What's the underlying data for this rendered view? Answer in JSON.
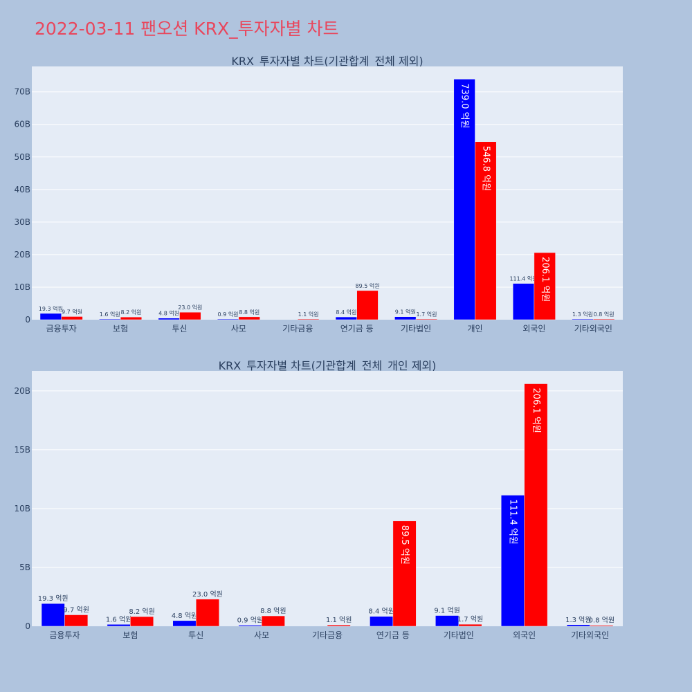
{
  "page": {
    "title": "2022-03-11 팬오션 KRX_투자자별 차트"
  },
  "colors": {
    "buy": "#0000ff",
    "sell": "#ff0000",
    "plot_bg": "#e5ecf6",
    "page_bg": "#b0c4de",
    "title": "#e8475d"
  },
  "chart_data": [
    {
      "type": "bar",
      "title": "KRX_투자자별 차트(기관합계_전체 제외)",
      "categories": [
        "금융투자",
        "보험",
        "투신",
        "사모",
        "기타금융",
        "연기금 등",
        "기타법인",
        "개인",
        "외국인",
        "기타외국인"
      ],
      "series": [
        {
          "color": "#0000ff",
          "values": [
            1930000000,
            160000000,
            480000000,
            90000000,
            0,
            840000000,
            910000000,
            73900000000,
            11140000000,
            130000000
          ],
          "labels": [
            "19.3 억원",
            "1.6 억원",
            "4.8 억원",
            "0.9 억원",
            "",
            "8.4 억원",
            "9.1 억원",
            "739.0 억원",
            "111.4 억원",
            "1.3 억원"
          ]
        },
        {
          "color": "#ff0000",
          "values": [
            970000000,
            820000000,
            2300000000,
            880000000,
            110000000,
            8950000000,
            170000000,
            54680000000,
            20610000000,
            80000000
          ],
          "labels": [
            "9.7 억원",
            "8.2 억원",
            "23.0 억원",
            "8.8 억원",
            "1.1 억원",
            "89.5 억원",
            "1.7 억원",
            "546.8 억원",
            "206.1 억원",
            "0.8 억원"
          ]
        }
      ],
      "yticks": [
        0,
        10000000000,
        20000000000,
        30000000000,
        40000000000,
        50000000000,
        60000000000,
        70000000000
      ],
      "ytick_labels": [
        "0",
        "10B",
        "20B",
        "30B",
        "40B",
        "50B",
        "60B",
        "70B"
      ],
      "ylim": [
        0,
        77800000000
      ],
      "grid": true
    },
    {
      "type": "bar",
      "title": "KRX_투자자별 차트(기관합계_전체_개인 제외)",
      "categories": [
        "금융투자",
        "보험",
        "투신",
        "사모",
        "기타금융",
        "연기금 등",
        "기타법인",
        "외국인",
        "기타외국인"
      ],
      "series": [
        {
          "color": "#0000ff",
          "values": [
            1930000000,
            160000000,
            480000000,
            90000000,
            0,
            840000000,
            910000000,
            11140000000,
            130000000
          ],
          "labels": [
            "19.3 억원",
            "1.6 억원",
            "4.8 억원",
            "0.9 억원",
            "",
            "8.4 억원",
            "9.1 억원",
            "111.4 억원",
            "1.3 억원"
          ]
        },
        {
          "color": "#ff0000",
          "values": [
            970000000,
            820000000,
            2300000000,
            880000000,
            110000000,
            8950000000,
            170000000,
            20610000000,
            80000000
          ],
          "labels": [
            "9.7 억원",
            "8.2 억원",
            "23.0 억원",
            "8.8 억원",
            "1.1 억원",
            "89.5 억원",
            "1.7 억원",
            "206.1 억원",
            "0.8 억원"
          ]
        }
      ],
      "yticks": [
        0,
        5000000000,
        10000000000,
        15000000000,
        20000000000
      ],
      "ytick_labels": [
        "0",
        "5B",
        "10B",
        "15B",
        "20B"
      ],
      "ylim": [
        0,
        21700000000
      ],
      "grid": true
    }
  ]
}
